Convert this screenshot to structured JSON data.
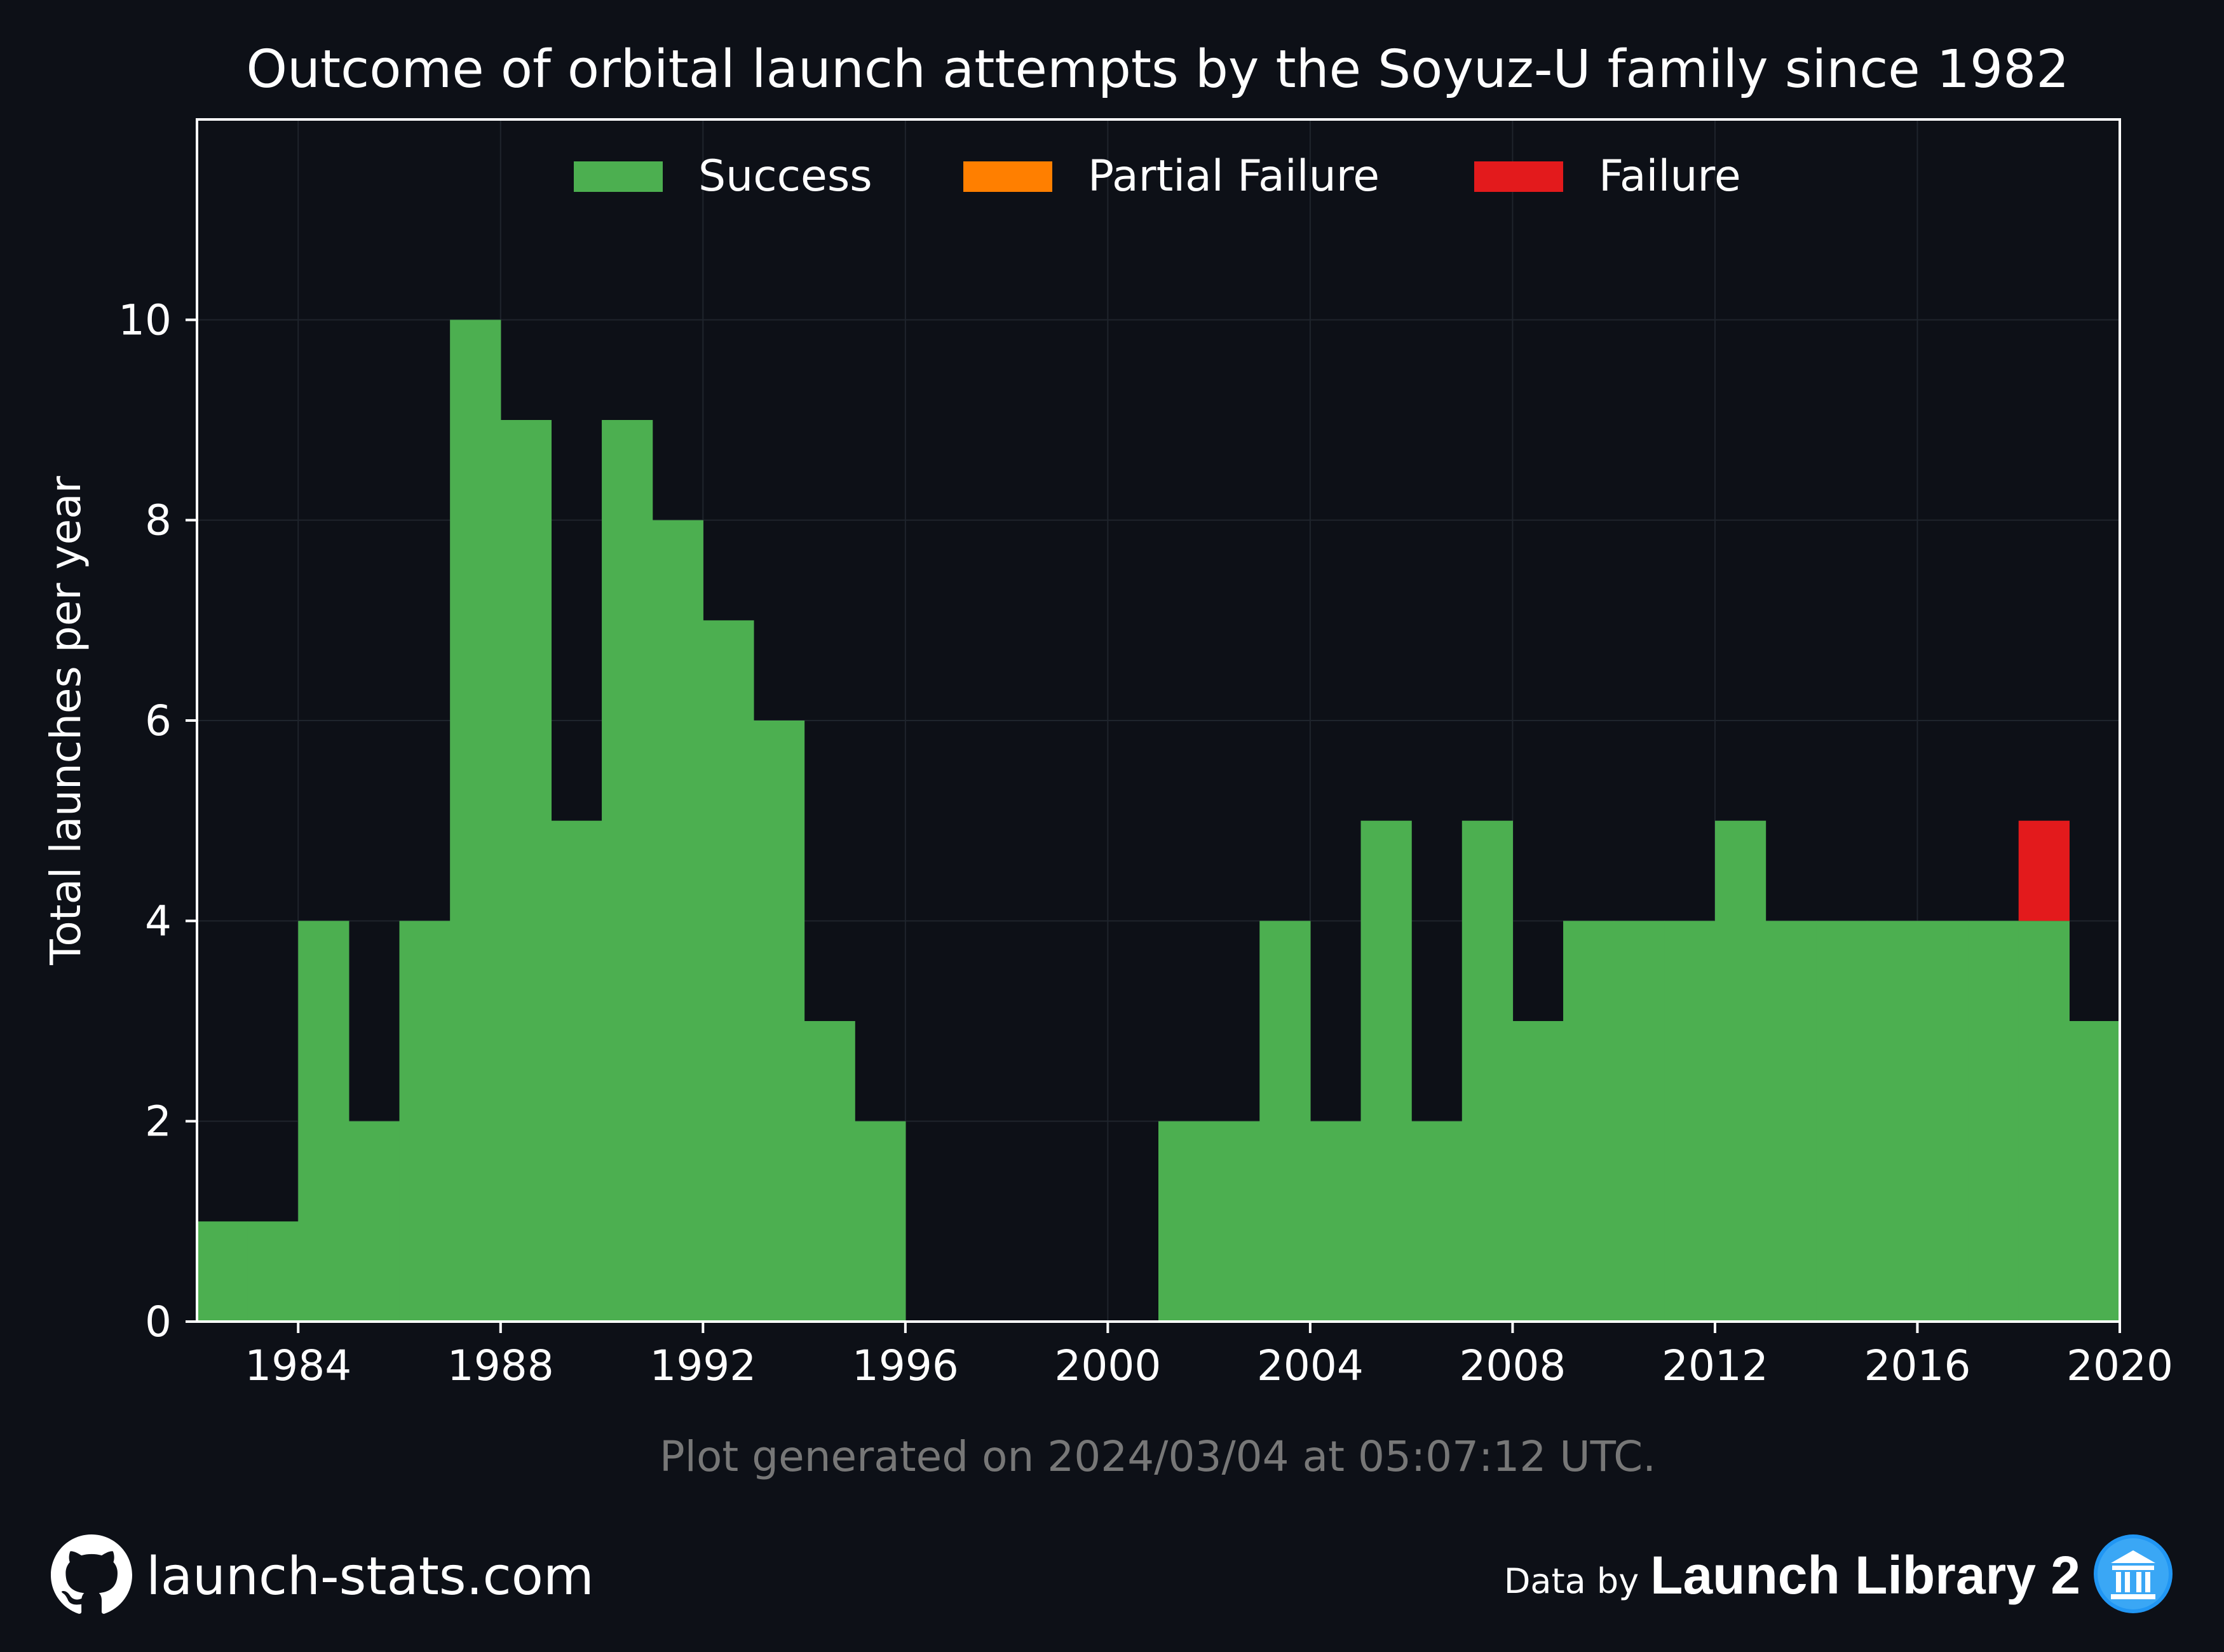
{
  "chart_data": {
    "type": "bar",
    "stacked": true,
    "title": "Outcome of orbital launch attempts by the Soyuz-U family since 1982",
    "ylabel": "Total launches per year",
    "xlabel": "",
    "x": [
      1982,
      1983,
      1984,
      1985,
      1986,
      1987,
      1988,
      1989,
      1990,
      1991,
      1992,
      1993,
      1994,
      1995,
      1996,
      1997,
      1998,
      1999,
      2000,
      2001,
      2002,
      2003,
      2004,
      2005,
      2006,
      2007,
      2008,
      2009,
      2010,
      2011,
      2012,
      2013,
      2014,
      2015,
      2016,
      2017,
      2018,
      2019
    ],
    "series": [
      {
        "name": "Success",
        "color": "#4caf50",
        "values": [
          1,
          1,
          4,
          2,
          4,
          10,
          9,
          5,
          9,
          8,
          7,
          6,
          3,
          2,
          0,
          0,
          0,
          0,
          0,
          2,
          2,
          4,
          2,
          5,
          2,
          5,
          3,
          4,
          4,
          4,
          5,
          4,
          4,
          4,
          4,
          4,
          4,
          3
        ]
      },
      {
        "name": "Partial Failure",
        "color": "#ff7f00",
        "values": [
          0,
          0,
          0,
          0,
          0,
          0,
          0,
          0,
          0,
          0,
          0,
          0,
          0,
          0,
          0,
          0,
          0,
          0,
          0,
          0,
          0,
          0,
          0,
          0,
          0,
          0,
          0,
          0,
          0,
          0,
          0,
          0,
          0,
          0,
          0,
          0,
          0,
          0
        ]
      },
      {
        "name": "Failure",
        "color": "#e31a1c",
        "values": [
          0,
          0,
          0,
          0,
          0,
          0,
          0,
          0,
          0,
          0,
          0,
          0,
          0,
          0,
          0,
          0,
          0,
          0,
          0,
          0,
          0,
          0,
          0,
          0,
          0,
          0,
          0,
          0,
          0,
          0,
          0,
          0,
          0,
          0,
          0,
          0,
          1,
          0
        ]
      }
    ],
    "xlim": [
      1982,
      2020
    ],
    "ylim": [
      0,
      12
    ],
    "xticks": [
      "1984",
      "1988",
      "1992",
      "1996",
      "2000",
      "2004",
      "2008",
      "2012",
      "2016",
      "2020"
    ],
    "yticks": [
      "0",
      "2",
      "4",
      "6",
      "8",
      "10"
    ],
    "grid": true,
    "legend_position": "top-center"
  },
  "caption": "Plot generated on 2024/03/04 at 05:07:12 UTC.",
  "footer": {
    "site": "launch-stats.com",
    "data_by": "Data by",
    "source": "Launch Library 2",
    "github_icon": "github-icon",
    "ll2_icon": "launch-library-logo-icon"
  },
  "colors": {
    "background": "#0d1017",
    "grid": "#1f242c",
    "axis": "#ffffff",
    "caption": "#777777"
  }
}
